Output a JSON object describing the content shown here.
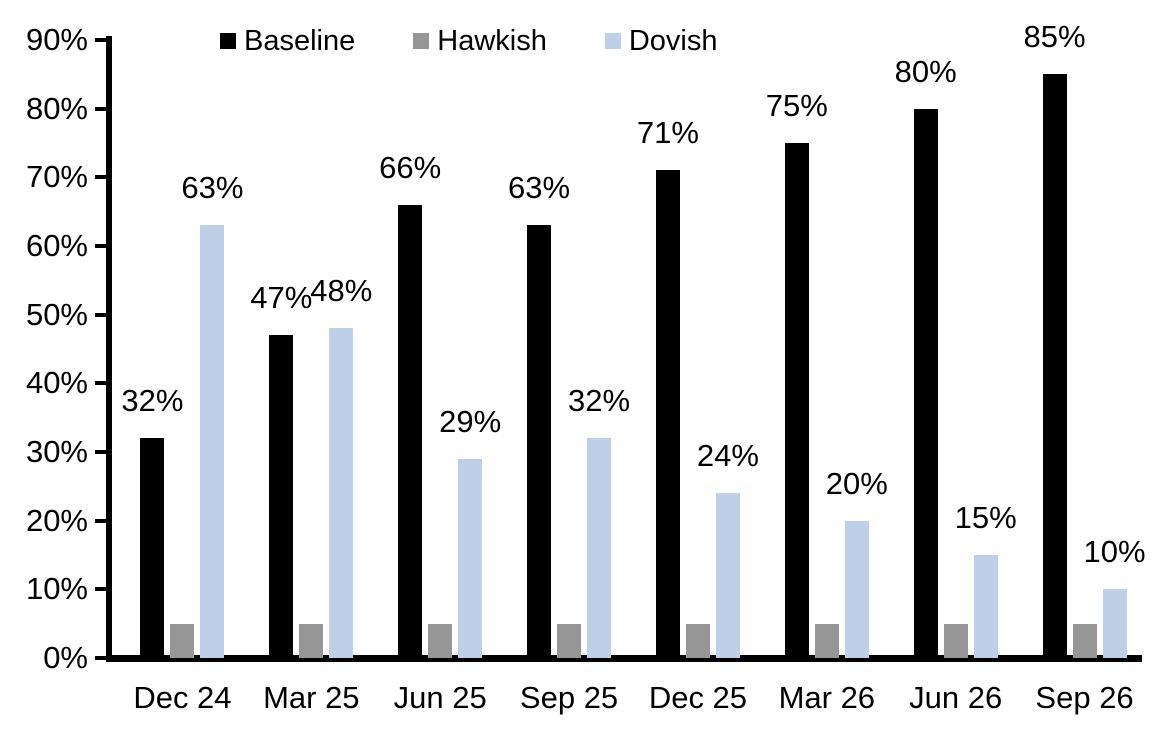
{
  "chart_data": {
    "type": "bar",
    "title": "",
    "xlabel": "",
    "ylabel": "",
    "categories": [
      "Dec 24",
      "Mar 25",
      "Jun 25",
      "Sep 25",
      "Dec 25",
      "Mar 26",
      "Jun 26",
      "Sep 26"
    ],
    "series": [
      {
        "name": "Baseline",
        "color": "#000000",
        "values": [
          32,
          47,
          66,
          63,
          71,
          75,
          80,
          85
        ],
        "show_value_labels": true
      },
      {
        "name": "Hawkish",
        "color": "#969696",
        "values": [
          5,
          5,
          5,
          5,
          5,
          5,
          5,
          5
        ],
        "show_value_labels": false
      },
      {
        "name": "Dovish",
        "color": "#BDD0E8",
        "values": [
          63,
          48,
          29,
          32,
          24,
          20,
          15,
          10
        ],
        "show_value_labels": true
      }
    ],
    "value_label_format": "{v}%",
    "ylim": [
      0,
      90
    ],
    "ytick_step": 10,
    "ytick_labels": [
      "0%",
      "10%",
      "20%",
      "30%",
      "40%",
      "50%",
      "60%",
      "70%",
      "80%",
      "90%"
    ],
    "grid": false,
    "legend_position": "top-center",
    "axis_color": "#000000",
    "background_color": "#FFFFFF"
  }
}
